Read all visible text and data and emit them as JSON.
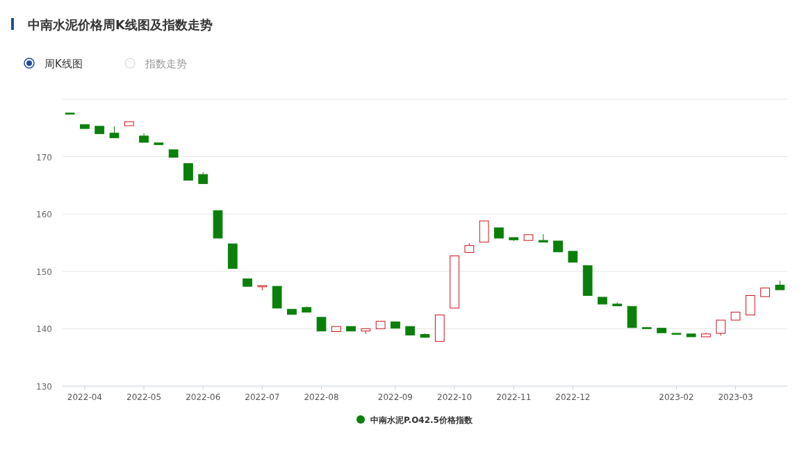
{
  "chart_data": {
    "type": "candlestick",
    "title": "中南水泥价格周K线图及指数走势",
    "annotations": [
      "周K线图",
      "指数走势"
    ],
    "categories": [
      null,
      "2022-04",
      null,
      null,
      null,
      "2022-05",
      null,
      null,
      null,
      "2022-06",
      null,
      null,
      null,
      "2022-07",
      null,
      null,
      null,
      "2022-08",
      null,
      null,
      null,
      null,
      "2022-09",
      null,
      null,
      null,
      "2022-10",
      null,
      null,
      null,
      "2022-11",
      null,
      null,
      null,
      "2022-12",
      null,
      null,
      null,
      null,
      null,
      null,
      "2023-02",
      null,
      null,
      null,
      "2023-03",
      null,
      null,
      null
    ],
    "ylim": [
      130,
      180
    ],
    "yticks": [
      130,
      140,
      150,
      160,
      170,
      {
        "value": 180,
        "label": null
      }
    ],
    "grid": "y",
    "legend": "bottom",
    "series": [
      {
        "name": "中南水泥P.O42.5价格指数",
        "color": "#0a800a",
        "colors": [
          "#0a800a",
          "#0a800a",
          "#0a800a",
          "#0a800a",
          "#d0111b",
          "#0a800a",
          "#0a800a",
          "#0a800a",
          "#0a800a",
          "#0a800a",
          "#0a800a",
          "#0a800a",
          "#0a800a",
          "#d0111b",
          "#0a800a",
          "#0a800a",
          "#0a800a",
          "#0a800a",
          "#d0111b",
          "#0a800a",
          "#d0111b",
          "#d0111b",
          "#0a800a",
          "#0a800a",
          "#0a800a",
          "#d0111b",
          "#d0111b",
          "#d0111b",
          "#d0111b",
          "#0a800a",
          "#0a800a",
          "#d0111b",
          "#0a800a",
          "#0a800a",
          "#0a800a",
          "#0a800a",
          "#0a800a",
          "#0a800a",
          "#0a800a",
          "#0a800a",
          "#0a800a",
          "#0a800a",
          "#0a800a",
          "#d0111b",
          "#d0111b",
          "#d0111b",
          "#d0111b",
          "#d0111b",
          "#0a800a"
        ],
        "ohlc": [
          [
            177.6,
            177.6,
            177.5,
            177.5
          ],
          [
            175.6,
            175.6,
            174.9,
            174.9
          ],
          [
            175.3,
            175.3,
            174.0,
            174.0
          ],
          [
            174.1,
            175.3,
            173.3,
            173.3
          ],
          [
            175.4,
            176.1,
            175.4,
            176.1
          ],
          [
            173.6,
            174.1,
            172.5,
            172.5
          ],
          [
            172.4,
            172.4,
            172.1,
            172.1
          ],
          [
            171.2,
            171.2,
            169.9,
            169.9
          ],
          [
            168.8,
            168.8,
            165.9,
            165.9
          ],
          [
            166.9,
            167.3,
            165.3,
            165.3
          ],
          [
            160.6,
            160.6,
            155.8,
            155.8
          ],
          [
            154.8,
            154.8,
            150.5,
            150.5
          ],
          [
            148.7,
            148.7,
            147.4,
            147.4
          ],
          [
            147.4,
            147.5,
            146.7,
            147.5
          ],
          [
            147.4,
            147.4,
            143.6,
            143.6
          ],
          [
            143.4,
            143.4,
            142.5,
            142.5
          ],
          [
            143.7,
            143.9,
            142.9,
            142.9
          ],
          [
            142.0,
            142.0,
            139.6,
            139.6
          ],
          [
            139.5,
            140.4,
            139.5,
            140.4
          ],
          [
            140.4,
            140.4,
            139.6,
            139.6
          ],
          [
            139.6,
            140.0,
            139.1,
            140.0
          ],
          [
            140.0,
            141.3,
            140.0,
            141.3
          ],
          [
            141.2,
            141.2,
            140.1,
            140.1
          ],
          [
            140.4,
            140.4,
            138.9,
            138.9
          ],
          [
            139.0,
            139.2,
            138.5,
            138.5
          ],
          [
            137.8,
            142.4,
            137.8,
            142.4
          ],
          [
            143.6,
            152.7,
            143.6,
            152.7
          ],
          [
            153.3,
            154.9,
            153.3,
            154.5
          ],
          [
            155.1,
            158.8,
            155.1,
            158.8
          ],
          [
            157.6,
            157.6,
            155.8,
            155.8
          ],
          [
            155.9,
            155.9,
            155.3,
            155.5
          ],
          [
            155.4,
            156.4,
            155.4,
            156.4
          ],
          [
            155.4,
            156.5,
            155.1,
            155.1
          ],
          [
            155.3,
            155.3,
            153.4,
            153.4
          ],
          [
            153.5,
            153.5,
            151.6,
            151.6
          ],
          [
            151.0,
            151.0,
            145.8,
            145.8
          ],
          [
            145.5,
            145.5,
            144.3,
            144.3
          ],
          [
            144.3,
            144.6,
            144.0,
            144.0
          ],
          [
            143.9,
            143.9,
            140.2,
            140.2
          ],
          [
            140.2,
            140.2,
            140.1,
            140.1
          ],
          [
            140.1,
            140.1,
            139.3,
            139.3
          ],
          [
            139.2,
            139.2,
            139.1,
            139.1
          ],
          [
            139.1,
            139.1,
            138.6,
            138.6
          ],
          [
            138.6,
            139.3,
            138.6,
            139.1
          ],
          [
            139.2,
            141.5,
            138.8,
            141.5
          ],
          [
            141.5,
            142.9,
            141.5,
            142.9
          ],
          [
            142.4,
            145.8,
            142.4,
            145.8
          ],
          [
            145.6,
            147.1,
            145.6,
            147.1
          ],
          [
            147.6,
            148.4,
            146.8,
            146.8
          ]
        ]
      }
    ]
  }
}
